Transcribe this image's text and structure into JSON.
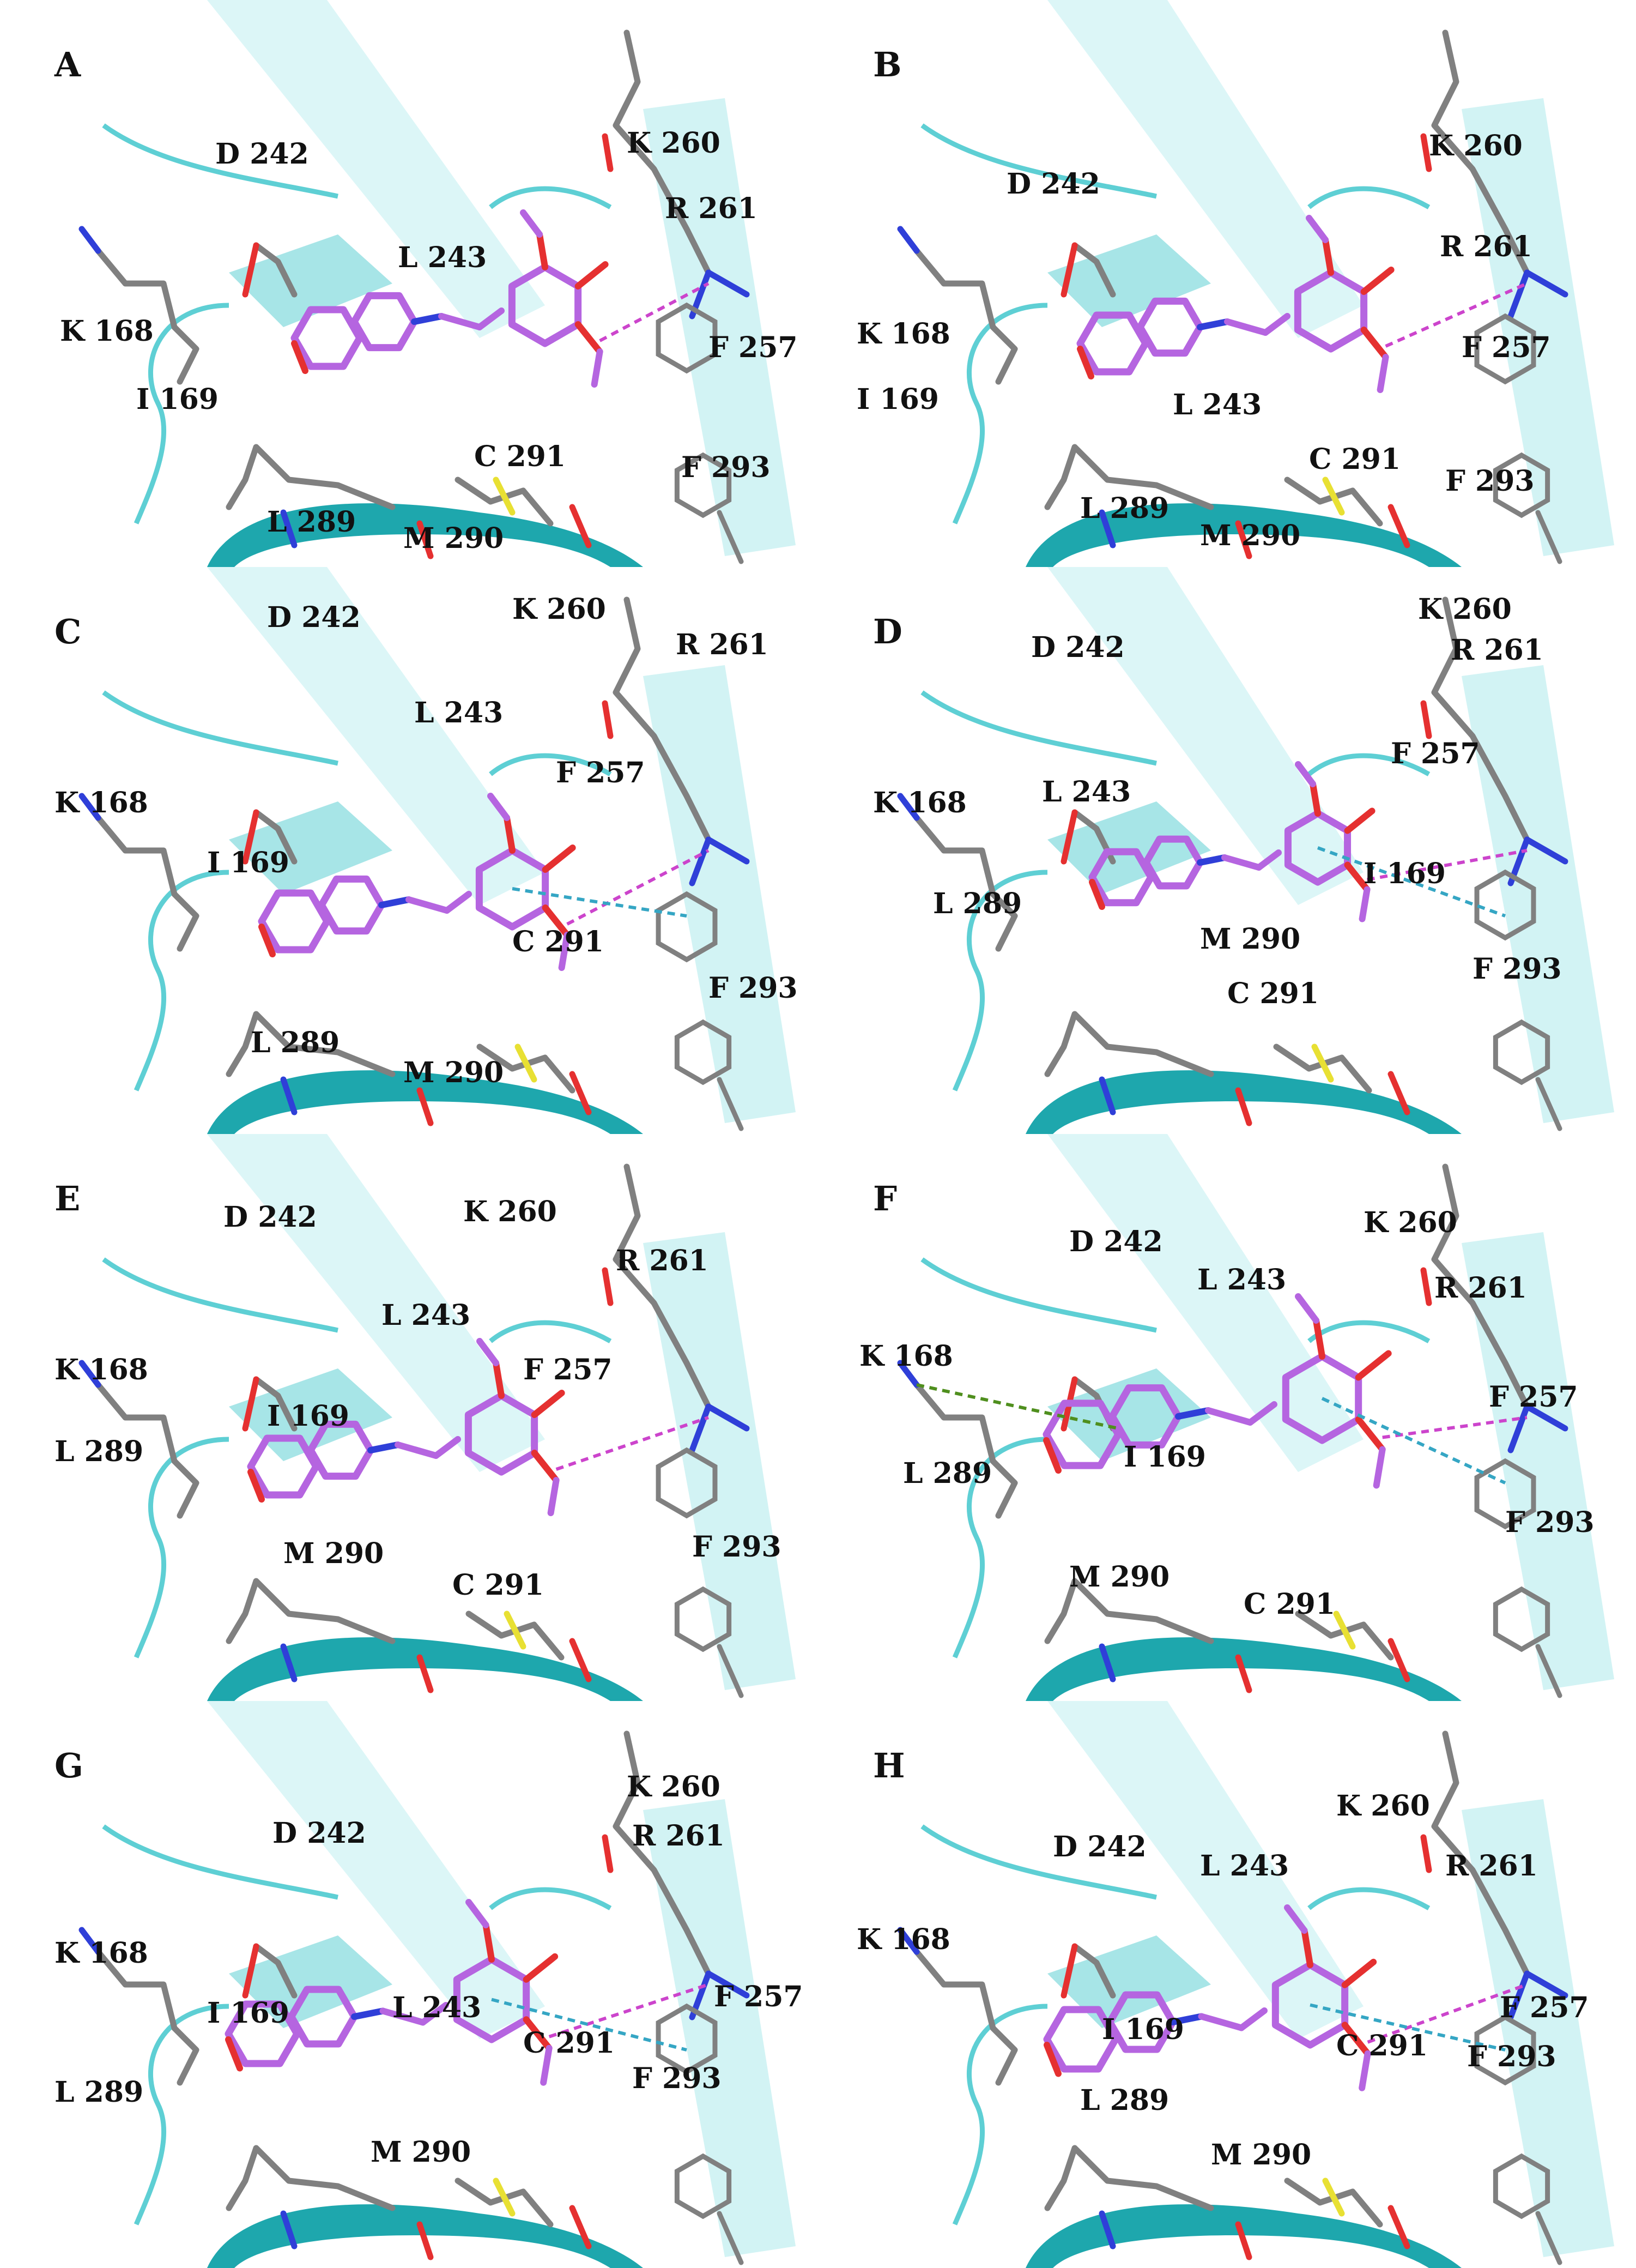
{
  "colors": {
    "ribbon": "#5ecfd4",
    "ribbon_dark": "#1ea7ad",
    "ribbon_light": "#bfeef0",
    "carbon": "#808080",
    "ligand": "#b565e0",
    "ligand_edge": "#9a4ac6",
    "oxygen": "#e53030",
    "nitrogen": "#2f3fd8",
    "sulfur": "#e8e033",
    "hbond": "#cc44cc",
    "pistack": "#35a6c4",
    "cation_pi": "#4f8f1e"
  },
  "panels": [
    {
      "letter": "A",
      "labels": [
        "D 242",
        "K 260",
        "R 261",
        "L 243",
        "K 168",
        "I 169",
        "F 257",
        "C 291",
        "F 293",
        "L 289",
        "M 290"
      ],
      "ligand_variant": 0,
      "pistack": false,
      "cation": false
    },
    {
      "letter": "B",
      "labels": [
        "K 260",
        "D 242",
        "R 261",
        "K 168",
        "I 169",
        "L 243",
        "F 257",
        "C 291",
        "F 293",
        "L 289",
        "M 290"
      ],
      "ligand_variant": 1,
      "pistack": false,
      "cation": false
    },
    {
      "letter": "C",
      "labels": [
        "D 242",
        "K 260",
        "R 261",
        "L 243",
        "F 257",
        "K 168",
        "I 169",
        "C 291",
        "F 293",
        "L 289",
        "M 290"
      ],
      "ligand_variant": 2,
      "pistack": true,
      "cation": false
    },
    {
      "letter": "D",
      "labels": [
        "K 260",
        "D 242",
        "R 261",
        "F 257",
        "L 243",
        "K 168",
        "I 169",
        "L 289",
        "M 290",
        "F 293",
        "C 291"
      ],
      "ligand_variant": 3,
      "pistack": true,
      "cation": false
    },
    {
      "letter": "E",
      "labels": [
        "D 242",
        "K 260",
        "R 261",
        "L 243",
        "F 257",
        "K 168",
        "I 169",
        "L 289",
        "M 290",
        "F 293",
        "C 291"
      ],
      "ligand_variant": 4,
      "pistack": false,
      "cation": false
    },
    {
      "letter": "F",
      "labels": [
        "D 242",
        "K 260",
        "L 243",
        "R 261",
        "K 168",
        "F 257",
        "I 169",
        "L 289",
        "F 293",
        "M 290",
        "C 291"
      ],
      "ligand_variant": 5,
      "pistack": true,
      "cation": true
    },
    {
      "letter": "G",
      "labels": [
        "K 260",
        "D 242",
        "R 261",
        "K 168",
        "F 257",
        "L 243",
        "I 169",
        "C 291",
        "F 293",
        "L 289",
        "M 290"
      ],
      "ligand_variant": 6,
      "pistack": true,
      "cation": false
    },
    {
      "letter": "H",
      "labels": [
        "K 260",
        "D 242",
        "L 243",
        "R 261",
        "K 168",
        "F 257",
        "I 169",
        "C 291",
        "F 293",
        "L 289",
        "M 290"
      ],
      "ligand_variant": 7,
      "pistack": true,
      "cation": false
    }
  ]
}
